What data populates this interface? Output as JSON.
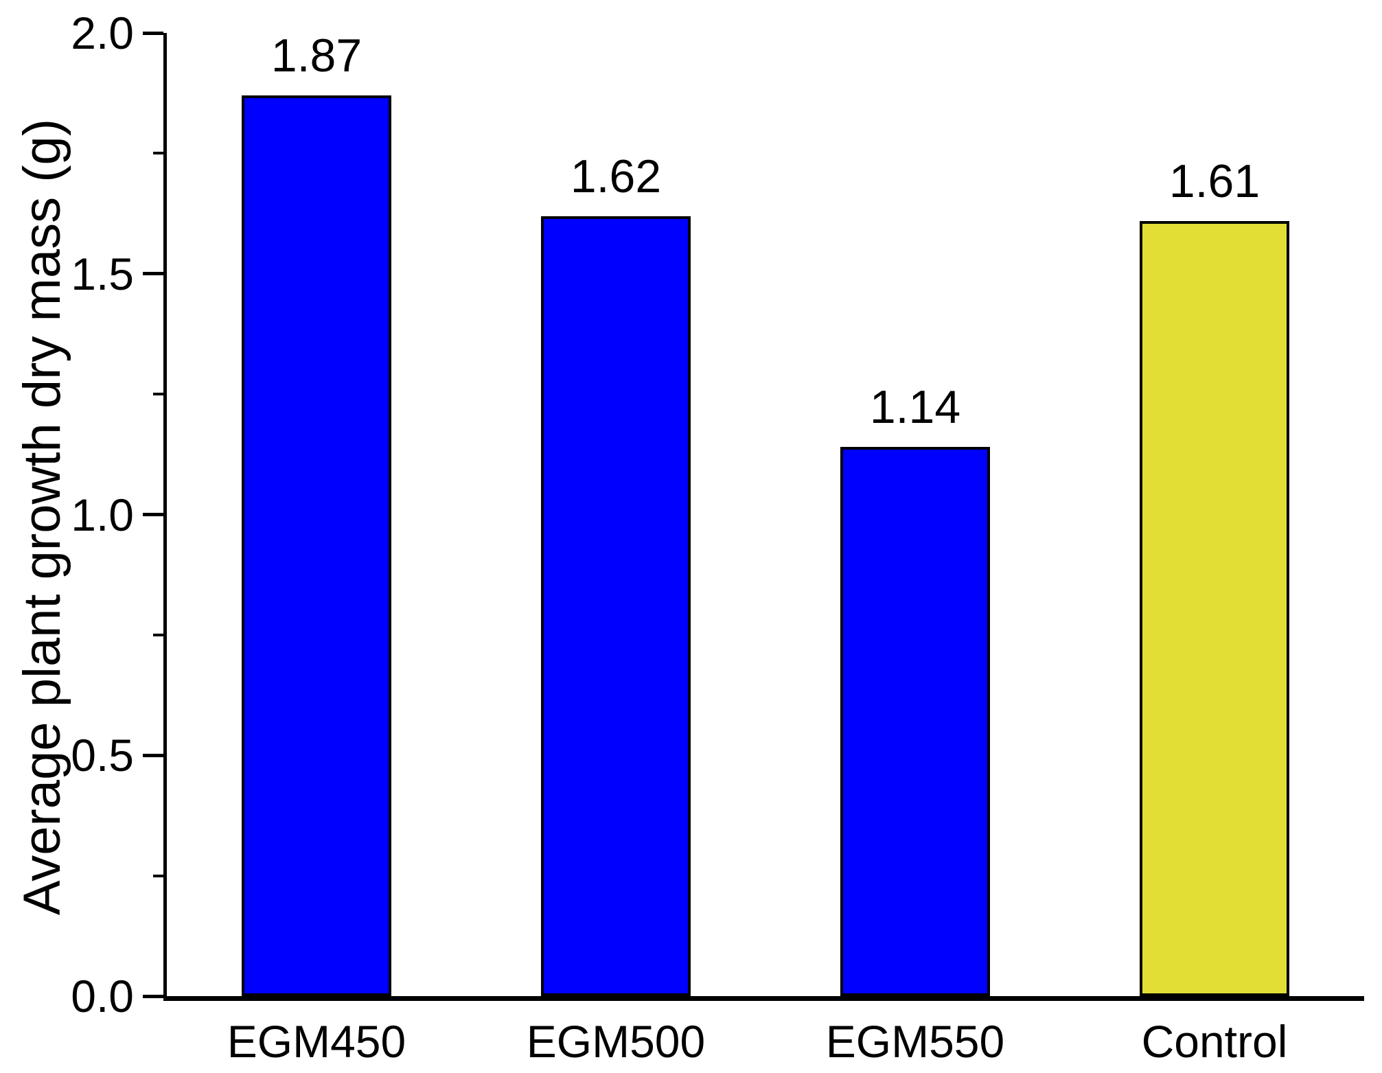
{
  "chart_data": {
    "type": "bar",
    "title": "",
    "ylabel": "Average plant growth dry mass (g)",
    "xlabel": "",
    "categories": [
      "EGM450",
      "EGM500",
      "EGM550",
      "Control"
    ],
    "values": [
      1.87,
      1.62,
      1.14,
      1.61
    ],
    "value_labels": [
      "1.87",
      "1.62",
      "1.14",
      "1.61"
    ],
    "series": [
      {
        "name": "Average plant growth dry mass",
        "values": [
          1.87,
          1.62,
          1.14,
          1.61
        ]
      }
    ],
    "bar_colors": [
      "#0000ff",
      "#0000ff",
      "#0000ff",
      "#e2de35"
    ],
    "bar_edge_color": "#000000",
    "ylim": [
      0.0,
      2.0
    ],
    "y_axis": {
      "major_ticks": [
        {
          "value": 0.0,
          "label": "0.0"
        },
        {
          "value": 0.5,
          "label": "0.5"
        },
        {
          "value": 1.0,
          "label": "1.0"
        },
        {
          "value": 1.5,
          "label": "1.5"
        },
        {
          "value": 2.0,
          "label": "2.0"
        }
      ],
      "minor_ticks": [
        0.25,
        0.75,
        1.25,
        1.75
      ],
      "tick_direction": "out"
    },
    "grid": false,
    "colors": {
      "axis": "#000000",
      "text": "#000000",
      "background": "#ffffff"
    }
  }
}
